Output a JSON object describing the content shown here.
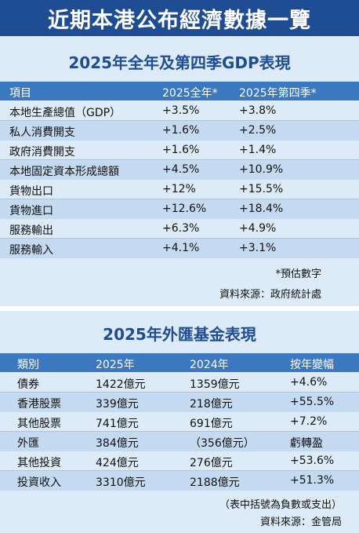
{
  "main_title": "近期本港公布經濟數據一覽",
  "gdp": {
    "title": "2025年全年及第四季GDP表現",
    "headers": [
      "項目",
      "2025全年*",
      "2025年第四季*"
    ],
    "rows": [
      [
        "本地生產總值（GDP）",
        "+3.5%",
        "+3.8%"
      ],
      [
        "私人消費開支",
        "+1.6%",
        "+2.5%"
      ],
      [
        "政府消費開支",
        "+1.6%",
        "+1.4%"
      ],
      [
        "本地固定資本形成總額",
        "+4.5%",
        "+10.9%"
      ],
      [
        "貨物出口",
        "+12%",
        "+15.5%"
      ],
      [
        "貨物進口",
        "+12.6%",
        "+18.4%"
      ],
      [
        "服務輸出",
        "+6.3%",
        "+4.9%"
      ],
      [
        "服務輸入",
        "+4.1%",
        "+3.1%"
      ]
    ],
    "note": "*預估數字",
    "source": "資料來源：政府統計處"
  },
  "fund": {
    "title": "2025年外匯基金表現",
    "headers": [
      "類別",
      "2025年",
      "2024年",
      "按年變幅"
    ],
    "rows": [
      [
        "債券",
        "1422億元",
        "1359億元",
        "+4.6%"
      ],
      [
        "香港股票",
        "339億元",
        "218億元",
        "+55.5%"
      ],
      [
        "其他股票",
        "741億元",
        "691億元",
        "+7.2%"
      ],
      [
        "外匯",
        "384億元",
        "（356億元）",
        "虧轉盈"
      ],
      [
        "其他投資",
        "424億元",
        "276億元",
        "+53.6%"
      ],
      [
        "投資收入",
        "3310億元",
        "2188億元",
        "+51.3%"
      ]
    ],
    "note": "（表中括號為負數或支出）",
    "source": "資料來源：金管局"
  }
}
